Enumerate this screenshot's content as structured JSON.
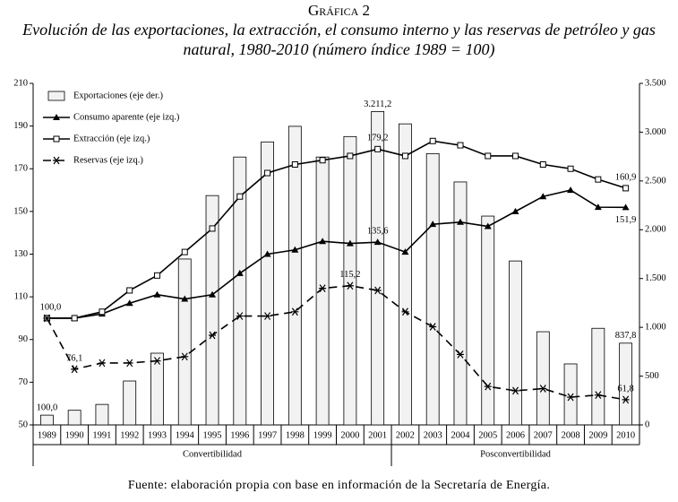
{
  "chart_data": {
    "type": "combo",
    "title": "Gráfica 2",
    "subtitle": "Evolución de las exportaciones, la extracción, el consumo interno y las reservas de petróleo y gas natural, 1980-2010 (número índice 1989 = 100)",
    "source": "Fuente: elaboración propia con base en información de la Secretaría de Energía.",
    "categories": [
      "1989",
      "1990",
      "1991",
      "1992",
      "1993",
      "1994",
      "1995",
      "1996",
      "1997",
      "1998",
      "1999",
      "2000",
      "2001",
      "2002",
      "2003",
      "2004",
      "2005",
      "2006",
      "2007",
      "2008",
      "2009",
      "2010"
    ],
    "periods": [
      {
        "label": "Convertibilidad",
        "from": 0,
        "to": 12
      },
      {
        "label": "Posconvertibilidad",
        "from": 13,
        "to": 21
      }
    ],
    "ylim": [
      50,
      210
    ],
    "yticks": [
      50,
      70,
      90,
      110,
      130,
      150,
      170,
      190,
      210
    ],
    "y2lim": [
      0,
      3500
    ],
    "y2ticks": [
      0,
      500,
      {
        "value": 1000,
        "label": "1.000"
      },
      {
        "value": 1500,
        "label": "1.500"
      },
      {
        "value": 2000,
        "label": "2.000"
      },
      {
        "value": 2500,
        "label": "2.500"
      },
      {
        "value": 3000,
        "label": "3.000"
      },
      {
        "value": 3500,
        "label": "3.500"
      }
    ],
    "grid": false,
    "legend": "upper left",
    "series": [
      {
        "name": "Exportaciones (eje der.)",
        "type": "bar",
        "axis": "y2",
        "color": "#f2f2f2",
        "values": [
          100,
          150,
          210,
          450,
          735,
          1700,
          2350,
          2745,
          2900,
          3060,
          2745,
          2955,
          3211.2,
          3085,
          2780,
          2490,
          2140,
          1680,
          955,
          625,
          990,
          837.8
        ],
        "value_labels": [
          "100,0",
          null,
          null,
          null,
          null,
          null,
          null,
          null,
          null,
          null,
          null,
          null,
          "3.211,2",
          null,
          null,
          null,
          null,
          null,
          null,
          null,
          null,
          "837,8"
        ]
      },
      {
        "name": "Consumo aparente (eje izq.)",
        "type": "line",
        "marker": "triangle",
        "line_style": "solid",
        "color": "#000000",
        "values": [
          100,
          100,
          102,
          107,
          111,
          109,
          111,
          121,
          130,
          132,
          136,
          135,
          135.6,
          131,
          144,
          145,
          143,
          150,
          157,
          160,
          152,
          151.9
        ],
        "value_labels": [
          null,
          null,
          null,
          null,
          null,
          null,
          null,
          null,
          null,
          null,
          null,
          null,
          "135,6",
          null,
          null,
          null,
          null,
          null,
          null,
          null,
          null,
          "151,9"
        ]
      },
      {
        "name": "Extracción (eje izq.)",
        "type": "line",
        "marker": "square",
        "line_style": "solid",
        "color": "#000000",
        "values": [
          100,
          100,
          103,
          113,
          120,
          131,
          142,
          157,
          168,
          172,
          174,
          176,
          179.2,
          176,
          183,
          181,
          176,
          176,
          172,
          170,
          165,
          160.9
        ],
        "value_labels": [
          "100,0",
          null,
          null,
          null,
          null,
          null,
          null,
          null,
          null,
          null,
          null,
          null,
          "179,2",
          null,
          null,
          null,
          null,
          null,
          null,
          null,
          null,
          "160,9"
        ]
      },
      {
        "name": "Reservas (eje izq.)",
        "type": "line",
        "marker": "asterisk",
        "line_style": "dashed",
        "color": "#000000",
        "values": [
          100,
          76.1,
          79,
          79,
          80,
          82,
          92,
          101,
          101,
          103,
          114,
          115.2,
          113,
          103,
          96,
          83,
          68,
          66,
          67,
          63,
          64,
          61.8
        ],
        "value_labels": [
          null,
          "76,1",
          null,
          null,
          null,
          null,
          null,
          null,
          null,
          null,
          null,
          "115,2",
          null,
          null,
          null,
          null,
          null,
          null,
          null,
          null,
          null,
          "61,8"
        ]
      }
    ]
  }
}
